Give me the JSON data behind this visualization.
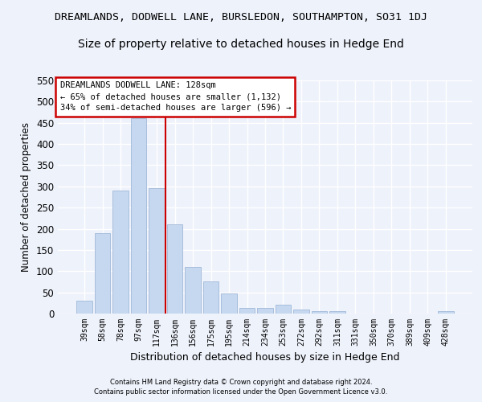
{
  "title": "DREAMLANDS, DODWELL LANE, BURSLEDON, SOUTHAMPTON, SO31 1DJ",
  "subtitle": "Size of property relative to detached houses in Hedge End",
  "xlabel": "Distribution of detached houses by size in Hedge End",
  "ylabel": "Number of detached properties",
  "categories": [
    "39sqm",
    "58sqm",
    "78sqm",
    "97sqm",
    "117sqm",
    "136sqm",
    "156sqm",
    "175sqm",
    "195sqm",
    "214sqm",
    "234sqm",
    "253sqm",
    "272sqm",
    "292sqm",
    "311sqm",
    "331sqm",
    "350sqm",
    "370sqm",
    "389sqm",
    "409sqm",
    "428sqm"
  ],
  "values": [
    30,
    190,
    290,
    460,
    295,
    210,
    110,
    75,
    47,
    13,
    13,
    21,
    10,
    5,
    5,
    0,
    0,
    0,
    0,
    0,
    5
  ],
  "bar_color": "#c5d8f0",
  "bar_edge_color": "#a0b8d8",
  "red_line_x": 4.5,
  "annotation_text": "DREAMLANDS DODWELL LANE: 128sqm\n← 65% of detached houses are smaller (1,132)\n34% of semi-detached houses are larger (596) →",
  "annotation_box_color": "#ffffff",
  "annotation_box_edge": "#cc0000",
  "ylim": [
    0,
    550
  ],
  "yticks": [
    0,
    50,
    100,
    150,
    200,
    250,
    300,
    350,
    400,
    450,
    500,
    550
  ],
  "footer1": "Contains HM Land Registry data © Crown copyright and database right 2024.",
  "footer2": "Contains public sector information licensed under the Open Government Licence v3.0.",
  "bg_color": "#eef2fb",
  "grid_color": "#ffffff",
  "title_fontsize": 9.5,
  "subtitle_fontsize": 10
}
